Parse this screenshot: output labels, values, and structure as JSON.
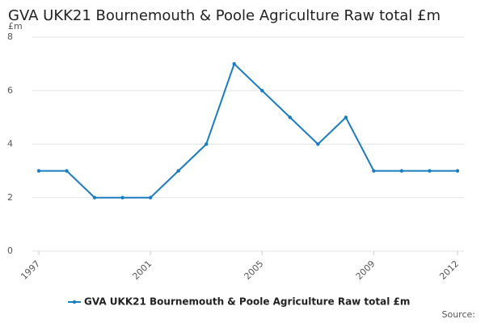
{
  "chart_data": {
    "type": "line",
    "title": "GVA UKK21 Bournemouth & Poole Agriculture Raw total £m",
    "y_label": "£m",
    "source": "Source:",
    "x": [
      1997,
      1998,
      1999,
      2000,
      2001,
      2002,
      2003,
      2004,
      2005,
      2006,
      2007,
      2008,
      2009,
      2010,
      2011,
      2012
    ],
    "series": [
      {
        "name": "GVA UKK21 Bournemouth & Poole Agriculture Raw total £m",
        "color": "#1a7cc1",
        "values": [
          3,
          3,
          2,
          2,
          2,
          3,
          4,
          7,
          6,
          5,
          4,
          5,
          3,
          3,
          3,
          3
        ]
      }
    ],
    "xlim": [
      1997,
      2012
    ],
    "xticks": [
      1997,
      2001,
      2005,
      2009,
      2012
    ],
    "ylim": [
      0,
      8
    ],
    "yticks": [
      0,
      2,
      4,
      6,
      8
    ],
    "grid": true
  }
}
